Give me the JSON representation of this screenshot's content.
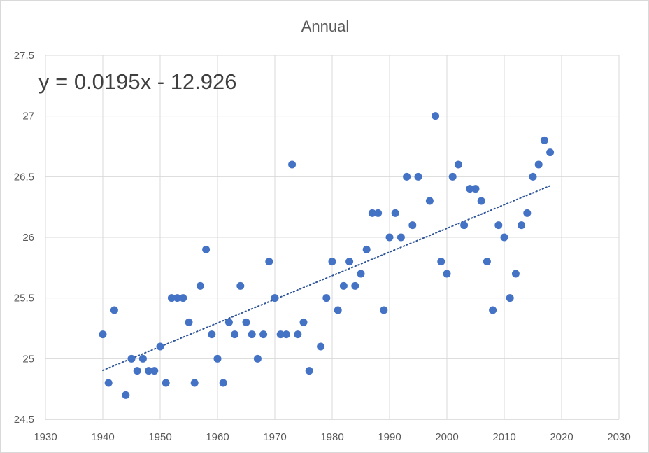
{
  "chart_data": {
    "type": "scatter",
    "title": "Annual",
    "xlabel": "",
    "ylabel": "",
    "xlim": [
      1930,
      2030
    ],
    "ylim": [
      24.5,
      27.5
    ],
    "x_ticks": [
      "1930",
      "1940",
      "1950",
      "1960",
      "1970",
      "1980",
      "1990",
      "2000",
      "2010",
      "2020",
      "2030"
    ],
    "y_ticks": [
      "24.5",
      "25",
      "25.5",
      "26",
      "26.5",
      "27",
      "27.5"
    ],
    "grid": true,
    "legend": "none",
    "point_color": "#4472c4",
    "trendline": {
      "type": "linear",
      "equation": "y = 0.0195x - 12.926",
      "slope": 0.0195,
      "intercept": -12.926,
      "x_range": [
        1940,
        2018
      ],
      "color": "#2f5597",
      "style": "dotted"
    },
    "series": [
      {
        "x": [
          1940,
          1941,
          1942,
          1944,
          1945,
          1946,
          1947,
          1948,
          1949,
          1950,
          1951,
          1952,
          1953,
          1954,
          1955,
          1956,
          1957,
          1958,
          1959,
          1960,
          1961,
          1962,
          1963,
          1964,
          1965,
          1966,
          1967,
          1968,
          1969,
          1970,
          1971,
          1972,
          1973,
          1974,
          1975,
          1976,
          1978,
          1979,
          1980,
          1981,
          1982,
          1983,
          1984,
          1985,
          1986,
          1987,
          1988,
          1989,
          1990,
          1991,
          1992,
          1993,
          1994,
          1995,
          1997,
          1998,
          1999,
          2000,
          2001,
          2002,
          2003,
          2004,
          2005,
          2006,
          2007,
          2008,
          2009,
          2010,
          2011,
          2012,
          2013,
          2014,
          2015,
          2016,
          2017,
          2018
        ],
        "y": [
          25.2,
          24.8,
          25.4,
          24.7,
          25.0,
          24.9,
          25.0,
          24.9,
          24.9,
          25.1,
          24.8,
          25.5,
          25.5,
          25.5,
          25.3,
          24.8,
          25.6,
          25.9,
          25.2,
          25.0,
          24.8,
          25.3,
          25.2,
          25.6,
          25.3,
          25.2,
          25.0,
          25.2,
          25.8,
          25.5,
          25.2,
          25.2,
          26.6,
          25.2,
          25.3,
          24.9,
          25.1,
          25.5,
          25.8,
          25.4,
          25.6,
          25.8,
          25.6,
          25.7,
          25.9,
          26.2,
          26.2,
          25.4,
          26.0,
          26.2,
          26.0,
          26.5,
          26.1,
          26.5,
          26.3,
          27.0,
          25.8,
          25.7,
          26.5,
          26.6,
          26.1,
          26.4,
          26.4,
          26.3,
          25.8,
          25.4,
          26.1,
          26.0,
          25.5,
          25.7,
          26.1,
          26.2,
          26.5,
          26.6,
          26.8,
          26.7
        ]
      }
    ]
  }
}
